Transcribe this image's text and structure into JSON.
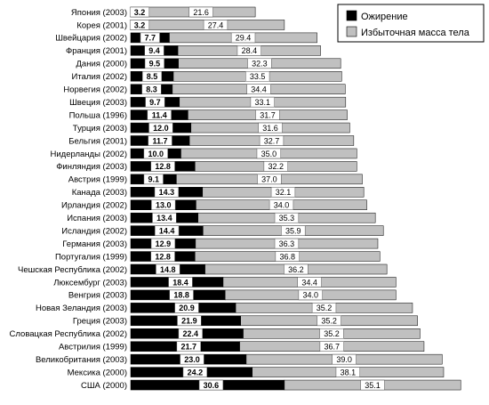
{
  "chart_data": {
    "type": "bar",
    "orientation": "horizontal",
    "stacked": true,
    "categories": [
      "Япония (2003)",
      "Корея (2001)",
      "Швейцария (2002)",
      "Франция (2001)",
      "Дания (2000)",
      "Италия (2002)",
      "Норвегия (2002)",
      "Швеция (2003)",
      "Польша (1996)",
      "Турция (2003)",
      "Бельгия (2001)",
      "Нидерланды (2002)",
      "Финляндия (2003)",
      "Австрия (1999)",
      "Канада (2003)",
      "Ирландия (2002)",
      "Испания (2003)",
      "Исландия (2002)",
      "Германия (2003)",
      "Португалия (1999)",
      "Чешская Республика (2002)",
      "Люксембург (2003)",
      "Венгрия (2003)",
      "Новая Зеландия (2003)",
      "Греция (2003)",
      "Словацкая Республика (2002)",
      "Австрилия (1999)",
      "Великобритания (2003)",
      "Мексика (2000)",
      "США (2000)"
    ],
    "series": [
      {
        "name": "Ожирение",
        "color": "#000000",
        "values": [
          3.2,
          3.2,
          7.7,
          9.4,
          9.5,
          8.5,
          8.3,
          9.7,
          11.4,
          12.0,
          11.7,
          10.0,
          12.8,
          9.1,
          14.3,
          13.0,
          13.4,
          14.4,
          12.9,
          12.8,
          14.8,
          18.4,
          18.8,
          20.9,
          21.9,
          22.4,
          21.7,
          23.0,
          24.2,
          30.6
        ]
      },
      {
        "name": "Избыточная масса тела",
        "color": "#c0c0c0",
        "values": [
          21.6,
          27.4,
          29.4,
          28.4,
          32.3,
          33.5,
          34.4,
          33.1,
          31.7,
          31.6,
          32.7,
          35.0,
          32.2,
          37.0,
          32.1,
          34.0,
          35.3,
          35.9,
          36.3,
          36.8,
          36.2,
          34.4,
          34.0,
          35.2,
          35.2,
          35.2,
          36.7,
          39.0,
          38.1,
          35.1
        ]
      }
    ],
    "value_labels": [
      [
        "3.2",
        "21.6"
      ],
      [
        "3.2",
        "27.4"
      ],
      [
        "7.7",
        "29.4"
      ],
      [
        "9.4",
        "28.4"
      ],
      [
        "9.5",
        "32.3"
      ],
      [
        "8.5",
        "33.5"
      ],
      [
        "8.3",
        "34.4"
      ],
      [
        "9.7",
        "33.1"
      ],
      [
        "11.4",
        "31.7"
      ],
      [
        "12.0",
        "31.6"
      ],
      [
        "11.7",
        "32.7"
      ],
      [
        "10.0",
        "35.0"
      ],
      [
        "12.8",
        "32.2"
      ],
      [
        "9.1",
        "37.0"
      ],
      [
        "14.3",
        "32.1"
      ],
      [
        "13.0",
        "34.0"
      ],
      [
        "13.4",
        "35.3"
      ],
      [
        "14.4",
        "35.9"
      ],
      [
        "12.9",
        "36.3"
      ],
      [
        "12.8",
        "36.8"
      ],
      [
        "14.8",
        "36.2"
      ],
      [
        "18.4",
        "34.4"
      ],
      [
        "18.8",
        "34.0"
      ],
      [
        "20.9",
        "35.2"
      ],
      [
        "21.9",
        "35.2"
      ],
      [
        "22.4",
        "35.2"
      ],
      [
        "21.7",
        "36.7"
      ],
      [
        "23.0",
        "39.0"
      ],
      [
        "24.2",
        "38.1"
      ],
      [
        "30.6",
        "35.1"
      ]
    ],
    "legend": {
      "placement": "top-right",
      "entries": [
        "Ожирение",
        "Избыточная масса тела"
      ]
    },
    "grid": false,
    "title": "",
    "xlabel": "",
    "ylabel": ""
  }
}
